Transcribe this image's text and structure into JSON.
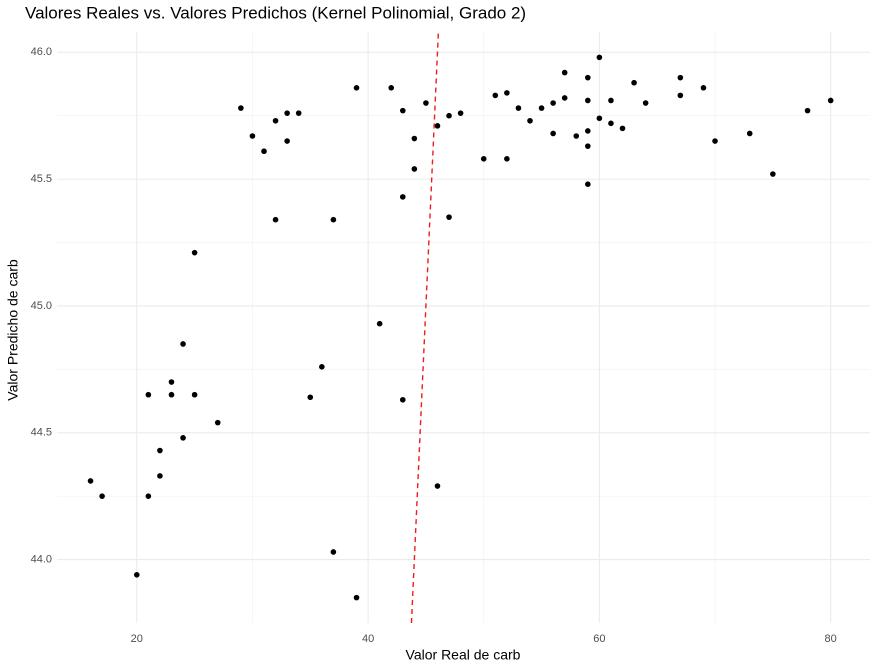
{
  "chart_data": {
    "type": "scatter",
    "title": "Valores Reales vs. Valores Predichos (Kernel Polinomial, Grado 2)",
    "x_label": "Valor Real de carb",
    "y_label": "Valor Predicho de carb",
    "series": [
      {
        "color": "#000000",
        "x": [
          16,
          17,
          20,
          21,
          21,
          22,
          22,
          23,
          23,
          24,
          24,
          25,
          25,
          27,
          29,
          30,
          31,
          32,
          32,
          33,
          33,
          34,
          35,
          36,
          37,
          37,
          39,
          39,
          41,
          42,
          43,
          43,
          43,
          44,
          44,
          45,
          46,
          46,
          47,
          47,
          48,
          50,
          51,
          52,
          52,
          53,
          54,
          55,
          56,
          56,
          57,
          57,
          58,
          59,
          59,
          59,
          59,
          59,
          60,
          60,
          61,
          61,
          62,
          63,
          64,
          67,
          67,
          69,
          70,
          73,
          75,
          78,
          80
        ],
        "values": [
          44.31,
          44.25,
          43.94,
          44.65,
          44.25,
          44.43,
          44.33,
          44.7,
          44.65,
          44.85,
          44.48,
          45.21,
          44.65,
          44.54,
          45.78,
          45.67,
          45.61,
          45.73,
          45.34,
          45.76,
          45.65,
          45.76,
          44.64,
          44.76,
          45.34,
          44.03,
          45.86,
          43.85,
          44.93,
          45.86,
          45.77,
          45.43,
          44.63,
          45.66,
          45.54,
          45.8,
          45.71,
          44.29,
          45.75,
          45.35,
          45.76,
          45.58,
          45.83,
          45.58,
          45.84,
          45.78,
          45.73,
          45.78,
          45.8,
          45.68,
          45.82,
          45.92,
          45.67,
          45.9,
          45.81,
          45.69,
          45.63,
          45.48,
          45.98,
          45.74,
          45.81,
          45.72,
          45.7,
          45.88,
          45.8,
          45.83,
          45.9,
          45.86,
          45.65,
          45.68,
          45.52,
          45.77,
          45.81
        ]
      }
    ],
    "identity_line": {
      "color": "#ee1c1c",
      "dashed": true
    },
    "xlim": [
      13.1,
      83.4
    ],
    "ylim": [
      43.75,
      46.08
    ],
    "xticks": [
      20,
      40,
      60,
      80
    ],
    "yticks": [
      {
        "value": 44,
        "label": "44.0"
      },
      {
        "value": 44.5,
        "label": "44.5"
      },
      {
        "value": 45,
        "label": "45.0"
      },
      {
        "value": 45.5,
        "label": "45.5"
      },
      {
        "value": 46,
        "label": "46.0"
      }
    ],
    "grid": true,
    "grid_minor": true
  }
}
